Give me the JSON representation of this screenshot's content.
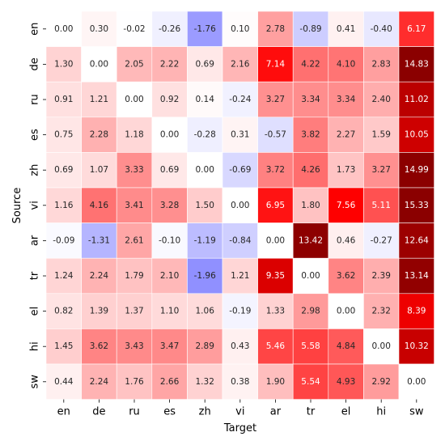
{
  "chart_data": {
    "type": "heatmap",
    "title": "",
    "xlabel": "Target",
    "ylabel": "Source",
    "x_categories": [
      "en",
      "de",
      "ru",
      "es",
      "zh",
      "vi",
      "ar",
      "tr",
      "el",
      "hi",
      "sw"
    ],
    "y_categories": [
      "en",
      "de",
      "ru",
      "es",
      "zh",
      "vi",
      "ar",
      "tr",
      "el",
      "hi",
      "sw"
    ],
    "values": [
      [
        0.0,
        0.3,
        -0.02,
        -0.26,
        -1.76,
        0.1,
        2.78,
        -0.89,
        0.41,
        -0.4,
        6.17
      ],
      [
        1.3,
        0.0,
        2.05,
        2.22,
        0.69,
        2.16,
        7.14,
        4.22,
        4.1,
        2.83,
        14.83
      ],
      [
        0.91,
        1.21,
        0.0,
        0.92,
        0.14,
        -0.24,
        3.27,
        3.34,
        3.34,
        2.4,
        11.02
      ],
      [
        0.75,
        2.28,
        1.18,
        0.0,
        -0.28,
        0.31,
        -0.57,
        3.82,
        2.27,
        1.59,
        10.05
      ],
      [
        0.69,
        1.07,
        3.33,
        0.69,
        0.0,
        -0.69,
        3.72,
        4.26,
        1.73,
        3.27,
        14.99
      ],
      [
        1.16,
        4.16,
        3.41,
        3.28,
        1.5,
        0.0,
        6.95,
        1.8,
        7.56,
        5.11,
        15.33
      ],
      [
        -0.09,
        -1.31,
        2.61,
        -0.1,
        -1.19,
        -0.84,
        0.0,
        13.42,
        0.46,
        -0.27,
        12.64
      ],
      [
        1.24,
        2.24,
        1.79,
        2.1,
        -1.96,
        1.21,
        9.35,
        0.0,
        3.62,
        2.39,
        13.14
      ],
      [
        0.82,
        1.39,
        1.37,
        1.1,
        1.06,
        -0.19,
        1.33,
        2.98,
        0.0,
        2.32,
        8.39
      ],
      [
        1.45,
        3.62,
        3.43,
        3.47,
        2.89,
        0.43,
        5.46,
        5.58,
        4.84,
        0.0,
        10.32
      ],
      [
        0.44,
        2.24,
        1.76,
        2.66,
        1.32,
        0.38,
        1.9,
        5.54,
        4.93,
        2.92,
        0.0
      ]
    ],
    "colormap": "bwr",
    "colors": {
      "negative": "#0000ff",
      "zero": "#ffffff",
      "positive": "#ff0000",
      "extreme": "#8b0000"
    },
    "grid": false,
    "legend": "none"
  }
}
